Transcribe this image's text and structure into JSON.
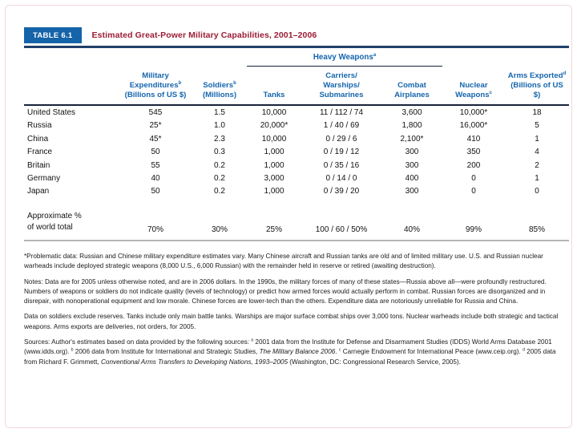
{
  "title": {
    "label": "TABLE 6.1",
    "text": "Estimated Great-Power Military Capabilities, 2001–2006"
  },
  "colors": {
    "accent_blue": "#1563a8",
    "title_maroon": "#9b1c34",
    "rule_navy": "#223f6a",
    "header_text_blue": "#1565ad",
    "header_rule_dark": "#16233c",
    "bottom_rule_gray": "#b5b5b5"
  },
  "table": {
    "group_header": {
      "label": "Heavy Weapons",
      "sup": "a",
      "span_columns": [
        "tanks",
        "carriers",
        "combat"
      ]
    },
    "columns": [
      {
        "id": "country",
        "header_lines": []
      },
      {
        "id": "expenditures",
        "header_lines": [
          [
            {
              "t": "Military"
            }
          ],
          [
            {
              "t": "Expenditures"
            },
            {
              "t": "b",
              "sup": true
            }
          ],
          [
            {
              "t": "(Billions of US $)"
            }
          ]
        ]
      },
      {
        "id": "soldiers",
        "header_lines": [
          [
            {
              "t": "Soldiers"
            },
            {
              "t": "b",
              "sup": true
            }
          ],
          [
            {
              "t": "(Millions)"
            }
          ]
        ]
      },
      {
        "id": "tanks",
        "header_lines": [
          [
            {
              "t": "Tanks"
            }
          ]
        ]
      },
      {
        "id": "carriers",
        "header_lines": [
          [
            {
              "t": "Carriers/"
            }
          ],
          [
            {
              "t": "Warships/"
            }
          ],
          [
            {
              "t": "Submarines"
            }
          ]
        ]
      },
      {
        "id": "combat",
        "header_lines": [
          [
            {
              "t": "Combat"
            }
          ],
          [
            {
              "t": "Airplanes"
            }
          ]
        ]
      },
      {
        "id": "nuclear",
        "header_lines": [
          [
            {
              "t": "Nuclear"
            }
          ],
          [
            {
              "t": "Weapons"
            },
            {
              "t": "c",
              "sup": true
            }
          ]
        ]
      },
      {
        "id": "arms",
        "header_lines": [
          [
            {
              "t": "Arms Exported"
            },
            {
              "t": "d",
              "sup": true
            }
          ],
          [
            {
              "t": "(Billions of US $)"
            }
          ]
        ]
      }
    ],
    "rows": [
      {
        "country": "United States",
        "values": [
          "545",
          "1.5",
          "10,000",
          "11 / 112 / 74",
          "3,600",
          "10,000*",
          "18"
        ]
      },
      {
        "country": "Russia",
        "values": [
          "25*",
          "1.0",
          "20,000*",
          "1 / 40 / 69",
          "1,800",
          "16,000*",
          "5"
        ]
      },
      {
        "country": "China",
        "values": [
          "45*",
          "2.3",
          "10,000",
          "0 / 29 / 6",
          "2,100*",
          "410",
          "1"
        ]
      },
      {
        "country": "France",
        "values": [
          "50",
          "0.3",
          "1,000",
          "0 / 19 / 12",
          "300",
          "350",
          "4"
        ]
      },
      {
        "country": "Britain",
        "values": [
          "55",
          "0.2",
          "1,000",
          "0 / 35 / 16",
          "300",
          "200",
          "2"
        ]
      },
      {
        "country": "Germany",
        "values": [
          "40",
          "0.2",
          "3,000",
          "0 / 14 / 0",
          "400",
          "0",
          "1"
        ]
      },
      {
        "country": "Japan",
        "values": [
          "50",
          "0.2",
          "1,000",
          "0 / 39 / 20",
          "300",
          "0",
          "0"
        ]
      }
    ],
    "summary_row": {
      "label_lines": [
        "Approximate %",
        "of world total"
      ],
      "values": [
        "70%",
        "30%",
        "25%",
        "100 / 60 / 50%",
        "40%",
        "99%",
        "85%"
      ]
    }
  },
  "footnotes": [
    [
      {
        "t": "*Problematic data: Russian and Chinese military expenditure estimates vary. Many Chinese aircraft and Russian tanks are old and of limited military use. U.S. and Russian nuclear warheads include deployed strategic weapons (8,000 U.S., 6,000 Russian) with the remainder held in reserve or retired (awaiting destruction)."
      }
    ],
    [
      {
        "t": "Notes: Data are for 2005 unless otherwise noted, and are in 2006 dollars. In the 1990s, the military forces of many of these states—Russia above all—were profoundly restructured. Numbers of weapons or soldiers do not indicate quality (levels of technology) or predict how armed forces would actually perform in combat. Russian forces are disorganized and in disrepair, with nonoperational equipment and low morale. Chinese forces are lower-tech than the others. Expenditure data are notoriously unreliable for Russia and China."
      }
    ],
    [
      {
        "t": "Data on soldiers exclude reserves. Tanks include only main battle tanks. Warships are major surface combat ships over 3,000 tons. Nuclear warheads include both strategic and tactical weapons. Arms exports are deliveries, not orders, for 2005."
      }
    ],
    [
      {
        "t": "Sources: Author's estimates based on data provided by the following sources: "
      },
      {
        "t": "a",
        "sup": true
      },
      {
        "t": " 2001 data from the Institute for Defense and Disarmament Studies (IDDS) World Arms Database 2001 (www.idds.org). "
      },
      {
        "t": "b",
        "sup": true
      },
      {
        "t": " 2006 data from Institute for International and Strategic Studies, "
      },
      {
        "t": "The Military Balance 2006",
        "i": true
      },
      {
        "t": ". "
      },
      {
        "t": "c",
        "sup": true
      },
      {
        "t": " Carnegie Endowment for International Peace (www.ceip.org). "
      },
      {
        "t": "d",
        "sup": true
      },
      {
        "t": " 2005 data from Richard F. Grimmett, "
      },
      {
        "t": "Conventional Arms Transfers to Developing Nations, 1993–2005",
        "i": true
      },
      {
        "t": " (Washington, DC: Congressional Research Service, 2005)."
      }
    ]
  ]
}
